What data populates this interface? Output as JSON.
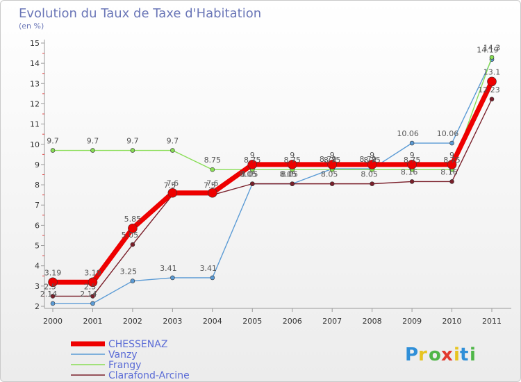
{
  "chart_data": {
    "type": "line",
    "title": "Evolution du Taux de Taxe d'Habitation",
    "subtitle": "(en %)",
    "x": [
      "2000",
      "2001",
      "2002",
      "2003",
      "2004",
      "2005",
      "2006",
      "2007",
      "2008",
      "2009",
      "2010",
      "2011"
    ],
    "ylim": [
      2,
      15
    ],
    "yticks": [
      "2",
      "3",
      "4",
      "5",
      "6",
      "7",
      "8",
      "9",
      "10",
      "11",
      "12",
      "13",
      "14",
      "15"
    ],
    "grid": false,
    "legend_position": "bottom-left",
    "series": [
      {
        "name": "CHESSENAZ",
        "color": "#ee0000",
        "values": [
          3.19,
          3.19,
          5.85,
          7.6,
          7.6,
          9,
          9,
          9,
          9,
          9,
          9,
          13.1
        ],
        "labels": [
          "3.19",
          "3.19",
          "5.85",
          "7.6",
          "7.6",
          "9",
          "9",
          "9",
          "9",
          "9",
          "9",
          "13.1"
        ]
      },
      {
        "name": "Vanzy",
        "color": "#5b9bd5",
        "values": [
          2.14,
          2.14,
          3.25,
          3.41,
          3.41,
          8.05,
          8.05,
          8.79,
          8.79,
          10.06,
          10.06,
          14.19
        ],
        "labels": [
          "2.14",
          "2.14",
          "3.25",
          "3.41",
          "3.41",
          "8.05",
          "8.05",
          "8.79",
          "8.79",
          "10.06",
          "10.06",
          "14.19"
        ]
      },
      {
        "name": "Frangy",
        "color": "#88dd55",
        "values": [
          9.7,
          9.7,
          9.7,
          9.7,
          8.75,
          8.75,
          8.75,
          8.75,
          8.75,
          8.75,
          8.75,
          14.3
        ],
        "labels": [
          "9.7",
          "9.7",
          "9.7",
          "9.7",
          "8.75",
          "8.75",
          "8.75",
          "8.75",
          "8.75",
          "8.75",
          "8.75",
          "14.3"
        ]
      },
      {
        "name": "Clarafond-Arcine",
        "color": "#7a1f2a",
        "values": [
          2.5,
          2.5,
          5.05,
          7.5,
          7.5,
          8.05,
          8.05,
          8.05,
          8.05,
          8.16,
          8.16,
          12.23
        ],
        "labels": [
          "2.5",
          "2.5",
          "5.05",
          "7.5",
          "7.5",
          "8.05",
          "8.05",
          "8.05",
          "8.05",
          "8.16",
          "8.16",
          "12.23"
        ]
      }
    ]
  },
  "logo": {
    "letters": [
      "P",
      "r",
      "o",
      "x",
      "i",
      "t",
      "i"
    ]
  }
}
